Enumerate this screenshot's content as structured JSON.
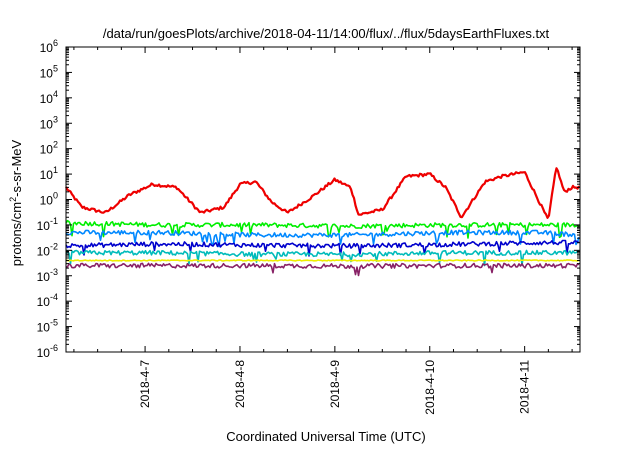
{
  "chart_data": {
    "type": "line",
    "title": "/data/run/goesPlots/archive/2018-04-11/14:00/flux/../flux/5daysEarthFluxes.txt",
    "xlabel": "Coordinated Universal Time (UTC)",
    "ylabel": {
      "prefix": "protons/cm",
      "sup": "2",
      "suffix": "-s-sr-MeV"
    },
    "y_scale": "log",
    "ylim": [
      1e-06,
      1000000.0
    ],
    "y_ticks": [
      {
        "base": "10",
        "exp": "-6"
      },
      {
        "base": "10",
        "exp": "-5"
      },
      {
        "base": "10",
        "exp": "-4"
      },
      {
        "base": "10",
        "exp": "-3"
      },
      {
        "base": "10",
        "exp": "-2"
      },
      {
        "base": "10",
        "exp": "-1"
      },
      {
        "base": "10",
        "exp": "0"
      },
      {
        "base": "10",
        "exp": "1"
      },
      {
        "base": "10",
        "exp": "2"
      },
      {
        "base": "10",
        "exp": "3"
      },
      {
        "base": "10",
        "exp": "4"
      },
      {
        "base": "10",
        "exp": "5"
      },
      {
        "base": "10",
        "exp": "6"
      }
    ],
    "xlim": [
      "2018-04-06T04:00",
      "2018-04-11T14:00"
    ],
    "x_ticks": [
      "2018-4-7",
      "2018-4-8",
      "2018-4-9",
      "2018-4-10",
      "2018-4-11"
    ],
    "grid": false,
    "legend": "none",
    "series": [
      {
        "color": "#ee0000",
        "x": [
          "2018-04-06T04:00",
          "2018-04-06T08:00",
          "2018-04-06T14:00",
          "2018-04-06T20:00",
          "2018-04-07T02:00",
          "2018-04-07T08:00",
          "2018-04-07T14:00",
          "2018-04-07T20:00",
          "2018-04-08T00:00",
          "2018-04-08T04:00",
          "2018-04-08T08:00",
          "2018-04-08T12:00",
          "2018-04-08T18:00",
          "2018-04-09T00:00",
          "2018-04-09T04:00",
          "2018-04-09T06:00",
          "2018-04-09T12:00",
          "2018-04-09T18:00",
          "2018-04-10T00:00",
          "2018-04-10T04:00",
          "2018-04-10T08:00",
          "2018-04-10T14:00",
          "2018-04-10T18:00",
          "2018-04-11T00:00",
          "2018-04-11T06:00",
          "2018-04-11T08:00",
          "2018-04-11T10:00",
          "2018-04-11T12:00",
          "2018-04-11T14:00"
        ],
        "y": [
          3,
          0.5,
          0.3,
          1.5,
          4,
          3,
          0.3,
          0.5,
          4,
          5,
          0.8,
          0.3,
          1.2,
          6,
          3,
          0.25,
          0.4,
          8,
          10,
          3,
          0.2,
          5,
          8,
          12,
          0.15,
          20,
          2,
          3,
          3
        ]
      },
      {
        "color": "#00ee00",
        "x": [
          "2018-04-06T04:00",
          "2018-04-07T04:00",
          "2018-04-08T04:00",
          "2018-04-09T04:00",
          "2018-04-10T04:00",
          "2018-04-11T04:00",
          "2018-04-11T14:00"
        ],
        "y": [
          0.12,
          0.1,
          0.1,
          0.09,
          0.1,
          0.1,
          0.1
        ]
      },
      {
        "color": "#0088ff",
        "x": [
          "2018-04-06T04:00",
          "2018-04-07T04:00",
          "2018-04-08T04:00",
          "2018-04-09T04:00",
          "2018-04-10T04:00",
          "2018-04-11T04:00",
          "2018-04-11T14:00"
        ],
        "y": [
          0.05,
          0.05,
          0.04,
          0.04,
          0.05,
          0.05,
          0.04
        ]
      },
      {
        "color": "#0000cc",
        "x": [
          "2018-04-06T04:00",
          "2018-04-07T04:00",
          "2018-04-08T04:00",
          "2018-04-09T04:00",
          "2018-04-10T04:00",
          "2018-04-11T04:00",
          "2018-04-11T14:00"
        ],
        "y": [
          0.015,
          0.018,
          0.016,
          0.015,
          0.017,
          0.02,
          0.02
        ]
      },
      {
        "color": "#00bbbb",
        "x": [
          "2018-04-06T04:00",
          "2018-04-07T04:00",
          "2018-04-08T04:00",
          "2018-04-09T04:00",
          "2018-04-10T04:00",
          "2018-04-11T04:00",
          "2018-04-11T14:00"
        ],
        "y": [
          0.008,
          0.008,
          0.007,
          0.007,
          0.008,
          0.008,
          0.008
        ]
      },
      {
        "color": "#eeee00",
        "x": [
          "2018-04-06T04:00",
          "2018-04-07T04:00",
          "2018-04-08T04:00",
          "2018-04-09T04:00",
          "2018-04-10T04:00",
          "2018-04-11T04:00",
          "2018-04-11T14:00"
        ],
        "y": [
          0.004,
          0.004,
          0.004,
          0.004,
          0.004,
          0.004,
          0.004
        ]
      },
      {
        "color": "#882266",
        "x": [
          "2018-04-06T04:00",
          "2018-04-07T04:00",
          "2018-04-08T04:00",
          "2018-04-09T04:00",
          "2018-04-10T04:00",
          "2018-04-11T04:00",
          "2018-04-11T14:00"
        ],
        "y": [
          0.0025,
          0.0025,
          0.0025,
          0.0024,
          0.0025,
          0.0025,
          0.0025
        ]
      }
    ]
  }
}
